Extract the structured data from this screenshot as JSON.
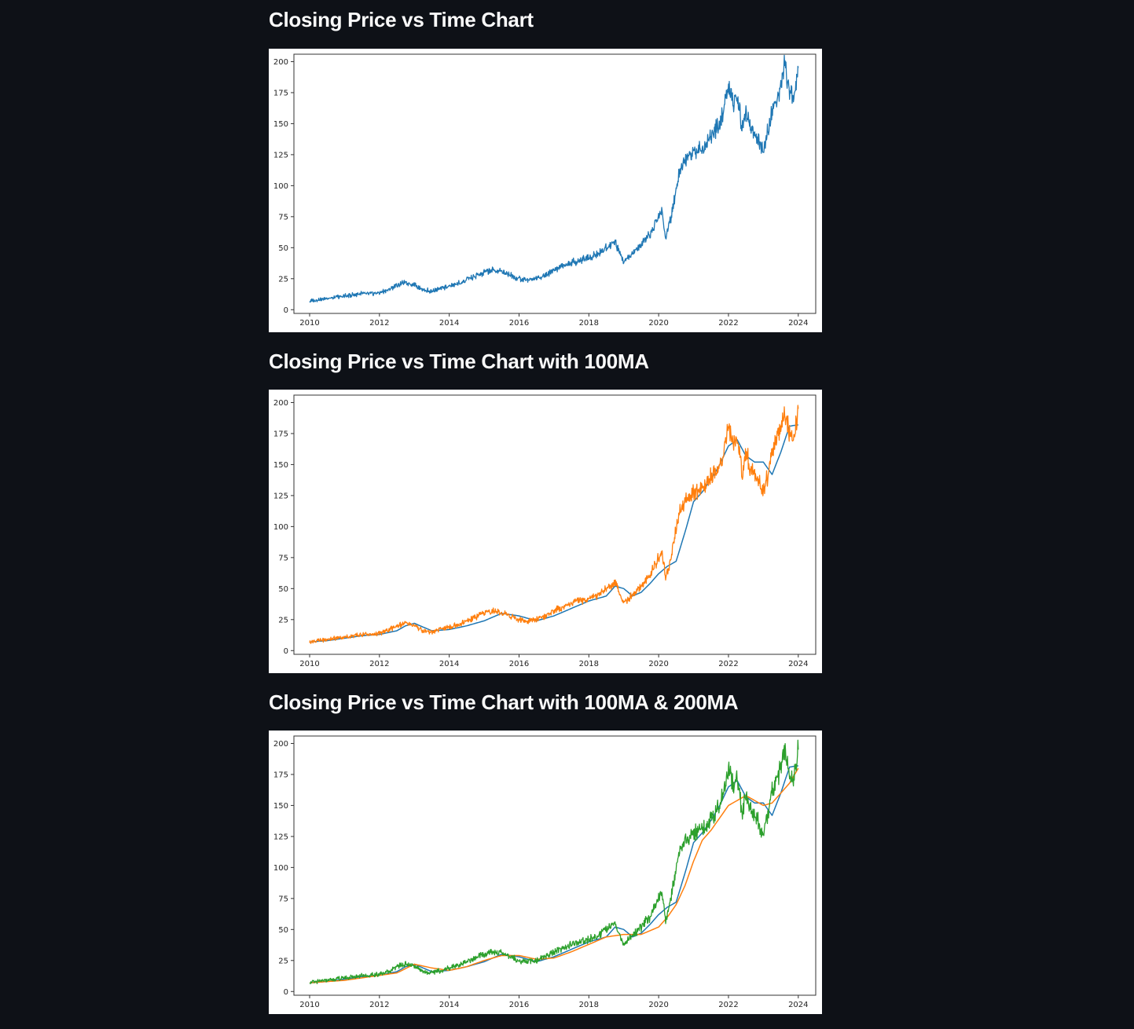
{
  "charts": [
    {
      "title": "Closing Price vs Time Chart",
      "chart_data": {
        "type": "line",
        "xlim": [
          2009.55,
          2024.5
        ],
        "ylim": [
          -3,
          206
        ],
        "x_ticks": [
          2010,
          2012,
          2014,
          2016,
          2018,
          2020,
          2022,
          2024
        ],
        "y_ticks": [
          0,
          25,
          50,
          75,
          100,
          125,
          150,
          175,
          200
        ],
        "grid": false,
        "series": [
          {
            "kind": "close",
            "color": "#1f77b4",
            "x": [
              2010.0,
              2010.25,
              2010.5,
              2010.75,
              2011.0,
              2011.25,
              2011.5,
              2011.75,
              2012.0,
              2012.25,
              2012.5,
              2012.75,
              2013.0,
              2013.25,
              2013.5,
              2013.75,
              2014.0,
              2014.25,
              2014.5,
              2014.75,
              2015.0,
              2015.25,
              2015.5,
              2015.75,
              2016.0,
              2016.25,
              2016.5,
              2016.75,
              2017.0,
              2017.25,
              2017.5,
              2017.75,
              2018.0,
              2018.25,
              2018.5,
              2018.75,
              2019.0,
              2019.25,
              2019.5,
              2019.75,
              2020.0,
              2020.1,
              2020.2,
              2020.35,
              2020.5,
              2020.6,
              2020.75,
              2021.0,
              2021.25,
              2021.5,
              2021.75,
              2022.0,
              2022.15,
              2022.25,
              2022.4,
              2022.5,
              2022.65,
              2022.75,
              2023.0,
              2023.15,
              2023.25,
              2023.5,
              2023.6,
              2023.75,
              2023.85,
              2024.0
            ],
            "y": [
              7,
              8,
              9,
              10,
              11,
              12,
              13,
              13,
              14,
              16,
              20,
              22,
              20,
              16,
              15,
              17,
              19,
              21,
              24,
              27,
              30,
              32,
              31,
              28,
              25,
              24,
              25,
              28,
              32,
              35,
              38,
              40,
              42,
              45,
              50,
              55,
              38,
              45,
              52,
              60,
              75,
              80,
              57,
              75,
              98,
              112,
              120,
              128,
              130,
              140,
              148,
              178,
              165,
              172,
              145,
              160,
              145,
              142,
              128,
              145,
              160,
              180,
              195,
              176,
              168,
              195
            ]
          }
        ]
      }
    },
    {
      "title": "Closing Price vs Time Chart with 100MA",
      "chart_data": {
        "type": "line",
        "xlim": [
          2009.55,
          2024.5
        ],
        "ylim": [
          -3,
          206
        ],
        "x_ticks": [
          2010,
          2012,
          2014,
          2016,
          2018,
          2020,
          2022,
          2024
        ],
        "y_ticks": [
          0,
          25,
          50,
          75,
          100,
          125,
          150,
          175,
          200
        ],
        "grid": false,
        "series": [
          {
            "kind": "ma100",
            "color": "#1f77b4",
            "x": [
              2010.0,
              2010.5,
              2011.0,
              2011.5,
              2012.0,
              2012.5,
              2012.75,
              2013.0,
              2013.5,
              2014.0,
              2014.5,
              2015.0,
              2015.5,
              2016.0,
              2016.5,
              2017.0,
              2017.5,
              2018.0,
              2018.5,
              2018.75,
              2019.0,
              2019.25,
              2019.5,
              2019.75,
              2020.0,
              2020.25,
              2020.5,
              2020.75,
              2021.0,
              2021.25,
              2021.5,
              2021.75,
              2022.0,
              2022.25,
              2022.5,
              2022.75,
              2023.0,
              2023.25,
              2023.5,
              2023.75,
              2024.0
            ],
            "y": [
              7,
              8,
              10,
              12,
              13,
              16,
              20,
              22,
              16,
              17,
              20,
              24,
              30,
              28,
              24,
              28,
              34,
              40,
              44,
              52,
              50,
              44,
              47,
              54,
              62,
              68,
              72,
              95,
              120,
              128,
              138,
              150,
              165,
              170,
              157,
              152,
              152,
              142,
              160,
              181,
              182
            ]
          },
          {
            "kind": "close",
            "color": "#ff7f0e",
            "x": [
              2010.0,
              2010.25,
              2010.5,
              2010.75,
              2011.0,
              2011.25,
              2011.5,
              2011.75,
              2012.0,
              2012.25,
              2012.5,
              2012.75,
              2013.0,
              2013.25,
              2013.5,
              2013.75,
              2014.0,
              2014.25,
              2014.5,
              2014.75,
              2015.0,
              2015.25,
              2015.5,
              2015.75,
              2016.0,
              2016.25,
              2016.5,
              2016.75,
              2017.0,
              2017.25,
              2017.5,
              2017.75,
              2018.0,
              2018.25,
              2018.5,
              2018.75,
              2019.0,
              2019.25,
              2019.5,
              2019.75,
              2020.0,
              2020.1,
              2020.2,
              2020.35,
              2020.5,
              2020.6,
              2020.75,
              2021.0,
              2021.25,
              2021.5,
              2021.75,
              2022.0,
              2022.15,
              2022.25,
              2022.4,
              2022.5,
              2022.65,
              2022.75,
              2023.0,
              2023.15,
              2023.25,
              2023.5,
              2023.6,
              2023.75,
              2023.85,
              2024.0
            ],
            "y": [
              7,
              8,
              9,
              10,
              11,
              12,
              13,
              13,
              14,
              16,
              20,
              22,
              20,
              16,
              15,
              17,
              19,
              21,
              24,
              27,
              30,
              32,
              31,
              28,
              25,
              24,
              25,
              28,
              32,
              35,
              38,
              40,
              42,
              45,
              50,
              55,
              38,
              45,
              52,
              60,
              75,
              80,
              57,
              75,
              98,
              112,
              120,
              128,
              130,
              140,
              148,
              178,
              165,
              172,
              145,
              160,
              145,
              142,
              128,
              145,
              160,
              180,
              195,
              176,
              168,
              195
            ]
          }
        ]
      }
    },
    {
      "title": "Closing Price vs Time Chart with 100MA & 200MA",
      "chart_data": {
        "type": "line",
        "xlim": [
          2009.55,
          2024.5
        ],
        "ylim": [
          -3,
          206
        ],
        "x_ticks": [
          2010,
          2012,
          2014,
          2016,
          2018,
          2020,
          2022,
          2024
        ],
        "y_ticks": [
          0,
          25,
          50,
          75,
          100,
          125,
          150,
          175,
          200
        ],
        "grid": false,
        "series": [
          {
            "kind": "ma100",
            "color": "#1f77b4",
            "x": [
              2010.0,
              2010.5,
              2011.0,
              2011.5,
              2012.0,
              2012.5,
              2012.75,
              2013.0,
              2013.5,
              2014.0,
              2014.5,
              2015.0,
              2015.5,
              2016.0,
              2016.5,
              2017.0,
              2017.5,
              2018.0,
              2018.5,
              2018.75,
              2019.0,
              2019.25,
              2019.5,
              2019.75,
              2020.0,
              2020.25,
              2020.5,
              2020.75,
              2021.0,
              2021.25,
              2021.5,
              2021.75,
              2022.0,
              2022.25,
              2022.5,
              2022.75,
              2023.0,
              2023.25,
              2023.5,
              2023.75,
              2024.0
            ],
            "y": [
              7,
              8,
              10,
              12,
              13,
              16,
              20,
              22,
              16,
              17,
              20,
              24,
              30,
              28,
              24,
              28,
              34,
              40,
              44,
              52,
              50,
              44,
              47,
              54,
              62,
              68,
              72,
              95,
              120,
              128,
              138,
              150,
              165,
              170,
              157,
              152,
              152,
              142,
              160,
              181,
              182
            ]
          },
          {
            "kind": "ma200",
            "color": "#ff7f0e",
            "x": [
              2010.0,
              2010.5,
              2011.0,
              2011.5,
              2012.0,
              2012.5,
              2013.0,
              2013.5,
              2014.0,
              2014.5,
              2015.0,
              2015.5,
              2016.0,
              2016.5,
              2017.0,
              2017.5,
              2018.0,
              2018.5,
              2019.0,
              2019.5,
              2020.0,
              2020.25,
              2020.5,
              2020.75,
              2021.0,
              2021.25,
              2021.5,
              2021.75,
              2022.0,
              2022.5,
              2023.0,
              2023.25,
              2023.5,
              2023.75,
              2024.0
            ],
            "y": [
              7,
              8,
              9,
              11,
              13,
              15,
              22,
              19,
              17,
              20,
              25,
              29,
              29,
              26,
              27,
              32,
              38,
              44,
              46,
              46,
              52,
              60,
              70,
              85,
              105,
              122,
              130,
              140,
              150,
              158,
              150,
              152,
              160,
              168,
              180
            ]
          },
          {
            "kind": "close",
            "color": "#2ca02c",
            "x": [
              2010.0,
              2010.25,
              2010.5,
              2010.75,
              2011.0,
              2011.25,
              2011.5,
              2011.75,
              2012.0,
              2012.25,
              2012.5,
              2012.75,
              2013.0,
              2013.25,
              2013.5,
              2013.75,
              2014.0,
              2014.25,
              2014.5,
              2014.75,
              2015.0,
              2015.25,
              2015.5,
              2015.75,
              2016.0,
              2016.25,
              2016.5,
              2016.75,
              2017.0,
              2017.25,
              2017.5,
              2017.75,
              2018.0,
              2018.25,
              2018.5,
              2018.75,
              2019.0,
              2019.25,
              2019.5,
              2019.75,
              2020.0,
              2020.1,
              2020.2,
              2020.35,
              2020.5,
              2020.6,
              2020.75,
              2021.0,
              2021.25,
              2021.5,
              2021.75,
              2022.0,
              2022.15,
              2022.25,
              2022.4,
              2022.5,
              2022.65,
              2022.75,
              2023.0,
              2023.15,
              2023.25,
              2023.5,
              2023.6,
              2023.75,
              2023.85,
              2024.0
            ],
            "y": [
              7,
              8,
              9,
              10,
              11,
              12,
              13,
              13,
              14,
              16,
              20,
              22,
              20,
              16,
              15,
              17,
              19,
              21,
              24,
              27,
              30,
              32,
              31,
              28,
              25,
              24,
              25,
              28,
              32,
              35,
              38,
              40,
              42,
              45,
              50,
              55,
              38,
              45,
              52,
              60,
              75,
              80,
              57,
              75,
              98,
              112,
              120,
              128,
              130,
              140,
              148,
              178,
              165,
              172,
              145,
              160,
              145,
              142,
              128,
              145,
              160,
              180,
              195,
              176,
              168,
              195
            ]
          }
        ]
      }
    }
  ]
}
